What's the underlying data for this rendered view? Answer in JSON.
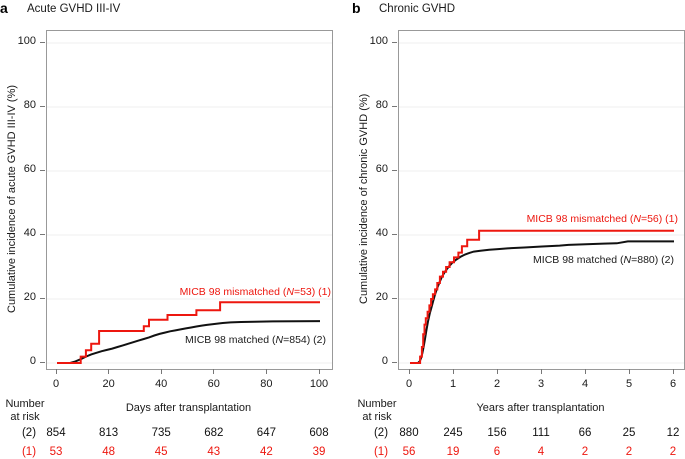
{
  "chart_data": [
    {
      "type": "line",
      "step_curves": true,
      "panel_letter": "a",
      "title": "Acute GVHD III-IV",
      "xlabel": "Days after transplantation",
      "ylabel": "Cumulative incidence of acute GVHD III-IV (%)",
      "xlim": [
        0,
        100
      ],
      "ylim": [
        0,
        100
      ],
      "x_ticks": [
        "0",
        "20",
        "40",
        "60",
        "80",
        "100"
      ],
      "x_tick_values": [
        0,
        20,
        40,
        60,
        80,
        100
      ],
      "y_ticks": [
        "0",
        "20",
        "40",
        "60",
        "80",
        "100"
      ],
      "y_tick_values": [
        0,
        20,
        40,
        60,
        80,
        100
      ],
      "grid": "faint horizontal lines at each y tick",
      "legend_position": "inline right of curves",
      "series": [
        {
          "name": "MICB 98 matched (N=854) (2)",
          "legend_pre": "MICB 98 matched (",
          "legend_italic": "N",
          "legend_post": "=854) (2)",
          "color": "#111111",
          "points": [
            [
              0,
              0
            ],
            [
              5,
              0
            ],
            [
              7,
              0.5
            ],
            [
              9,
              1.2
            ],
            [
              11,
              2
            ],
            [
              13,
              2.7
            ],
            [
              15,
              3.2
            ],
            [
              17,
              3.7
            ],
            [
              19,
              4.1
            ],
            [
              21,
              4.5
            ],
            [
              23,
              5
            ],
            [
              25,
              5.5
            ],
            [
              27,
              6
            ],
            [
              29,
              6.5
            ],
            [
              31,
              7
            ],
            [
              33,
              7.5
            ],
            [
              35,
              8
            ],
            [
              37,
              8.6
            ],
            [
              39,
              9.1
            ],
            [
              41,
              9.5
            ],
            [
              43,
              9.9
            ],
            [
              45,
              10.2
            ],
            [
              47,
              10.5
            ],
            [
              49,
              10.8
            ],
            [
              51,
              11.1
            ],
            [
              53,
              11.4
            ],
            [
              55,
              11.7
            ],
            [
              57,
              11.9
            ],
            [
              59,
              12.1
            ],
            [
              61,
              12.3
            ],
            [
              63,
              12.5
            ],
            [
              66,
              12.7
            ],
            [
              70,
              12.8
            ],
            [
              75,
              12.9
            ],
            [
              82,
              13
            ],
            [
              100,
              13.1
            ]
          ]
        },
        {
          "name": "MICB 98 mismatched (N=53) (1)",
          "legend_pre": "MICB 98 mismatched (",
          "legend_italic": "N",
          "legend_post": "=53) (1)",
          "color": "#ed170f",
          "points": [
            [
              0,
              0
            ],
            [
              9,
              0
            ],
            [
              9,
              2
            ],
            [
              11,
              2
            ],
            [
              11,
              4
            ],
            [
              13,
              4
            ],
            [
              13,
              6
            ],
            [
              16,
              6
            ],
            [
              16,
              10
            ],
            [
              33,
              10
            ],
            [
              33,
              11.5
            ],
            [
              35,
              11.5
            ],
            [
              35,
              13.5
            ],
            [
              42,
              13.5
            ],
            [
              42,
              15
            ],
            [
              53,
              15
            ],
            [
              53,
              16.5
            ],
            [
              62,
              16.5
            ],
            [
              62,
              19
            ],
            [
              100,
              19
            ]
          ]
        }
      ],
      "number_at_risk": {
        "header_line1": "Number",
        "header_line2": "at risk",
        "rows": [
          {
            "label": "(2)",
            "color": "#111111",
            "values": [
              "854",
              "813",
              "735",
              "682",
              "647",
              "608"
            ]
          },
          {
            "label": "(1)",
            "color": "#ed170f",
            "values": [
              "53",
              "48",
              "45",
              "43",
              "42",
              "39"
            ]
          }
        ]
      }
    },
    {
      "type": "line",
      "step_curves": true,
      "panel_letter": "b",
      "title": "Chronic GVHD",
      "xlabel": "Years after transplantation",
      "ylabel": "Cumulative incidence of chronic GVHD (%)",
      "xlim": [
        0,
        6
      ],
      "ylim": [
        0,
        100
      ],
      "x_ticks": [
        "0",
        "1",
        "2",
        "3",
        "4",
        "5",
        "6"
      ],
      "x_tick_values": [
        0,
        1,
        2,
        3,
        4,
        5,
        6
      ],
      "y_ticks": [
        "0",
        "20",
        "40",
        "60",
        "80",
        "100"
      ],
      "y_tick_values": [
        0,
        20,
        40,
        60,
        80,
        100
      ],
      "grid": "faint horizontal lines at each y tick",
      "legend_position": "inline right of curves",
      "series": [
        {
          "name": "MICB 98 matched (N=880) (2)",
          "legend_pre": "MICB 98 matched (",
          "legend_italic": "N",
          "legend_post": "=880) (2)",
          "color": "#111111",
          "points": [
            [
              0,
              0
            ],
            [
              0.18,
              0
            ],
            [
              0.22,
              0.5
            ],
            [
              0.25,
              1.5
            ],
            [
              0.28,
              3
            ],
            [
              0.31,
              5
            ],
            [
              0.34,
              7.5
            ],
            [
              0.37,
              10
            ],
            [
              0.41,
              13
            ],
            [
              0.45,
              15.5
            ],
            [
              0.49,
              17.5
            ],
            [
              0.53,
              19.5
            ],
            [
              0.57,
              21.5
            ],
            [
              0.62,
              23.5
            ],
            [
              0.67,
              25.2
            ],
            [
              0.72,
              26.8
            ],
            [
              0.78,
              28.2
            ],
            [
              0.84,
              29.4
            ],
            [
              0.9,
              30.4
            ],
            [
              0.96,
              31.3
            ],
            [
              1.05,
              32.3
            ],
            [
              1.15,
              33.2
            ],
            [
              1.25,
              33.9
            ],
            [
              1.35,
              34.4
            ],
            [
              1.45,
              34.8
            ],
            [
              1.6,
              35.1
            ],
            [
              1.8,
              35.4
            ],
            [
              2,
              35.6
            ],
            [
              2.3,
              35.9
            ],
            [
              2.6,
              36.1
            ],
            [
              3,
              36.4
            ],
            [
              3.4,
              36.7
            ],
            [
              3.6,
              36.9
            ],
            [
              4,
              37.1
            ],
            [
              4.4,
              37.3
            ],
            [
              4.7,
              37.4
            ],
            [
              4.95,
              38
            ],
            [
              6,
              38
            ]
          ]
        },
        {
          "name": "MICB 98 mismatched (N=56) (1)",
          "legend_pre": "MICB 98 mismatched (",
          "legend_italic": "N",
          "legend_post": "=56) (1)",
          "color": "#ed170f",
          "points": [
            [
              0,
              0
            ],
            [
              0.23,
              0
            ],
            [
              0.23,
              2
            ],
            [
              0.27,
              2
            ],
            [
              0.27,
              5
            ],
            [
              0.3,
              5
            ],
            [
              0.3,
              9
            ],
            [
              0.33,
              9
            ],
            [
              0.33,
              12
            ],
            [
              0.36,
              12
            ],
            [
              0.36,
              14
            ],
            [
              0.4,
              14
            ],
            [
              0.4,
              16
            ],
            [
              0.44,
              16
            ],
            [
              0.44,
              18
            ],
            [
              0.48,
              18
            ],
            [
              0.48,
              20
            ],
            [
              0.52,
              20
            ],
            [
              0.52,
              21.5
            ],
            [
              0.57,
              21.5
            ],
            [
              0.57,
              23
            ],
            [
              0.62,
              23
            ],
            [
              0.62,
              25
            ],
            [
              0.68,
              25
            ],
            [
              0.68,
              27
            ],
            [
              0.75,
              27
            ],
            [
              0.75,
              28.5
            ],
            [
              0.82,
              28.5
            ],
            [
              0.82,
              30
            ],
            [
              0.9,
              30
            ],
            [
              0.9,
              31.5
            ],
            [
              1,
              31.5
            ],
            [
              1,
              33
            ],
            [
              1.1,
              33
            ],
            [
              1.1,
              34.5
            ],
            [
              1.18,
              34.5
            ],
            [
              1.18,
              36.5
            ],
            [
              1.3,
              36.5
            ],
            [
              1.3,
              38.5
            ],
            [
              1.57,
              38.5
            ],
            [
              1.57,
              41.3
            ],
            [
              6,
              41.3
            ]
          ]
        }
      ],
      "number_at_risk": {
        "header_line1": "Number",
        "header_line2": "at risk",
        "rows": [
          {
            "label": "(2)",
            "color": "#111111",
            "values": [
              "880",
              "245",
              "156",
              "111",
              "66",
              "25",
              "12"
            ]
          },
          {
            "label": "(1)",
            "color": "#ed170f",
            "values": [
              "56",
              "19",
              "6",
              "4",
              "2",
              "2",
              "2"
            ]
          }
        ]
      }
    }
  ]
}
